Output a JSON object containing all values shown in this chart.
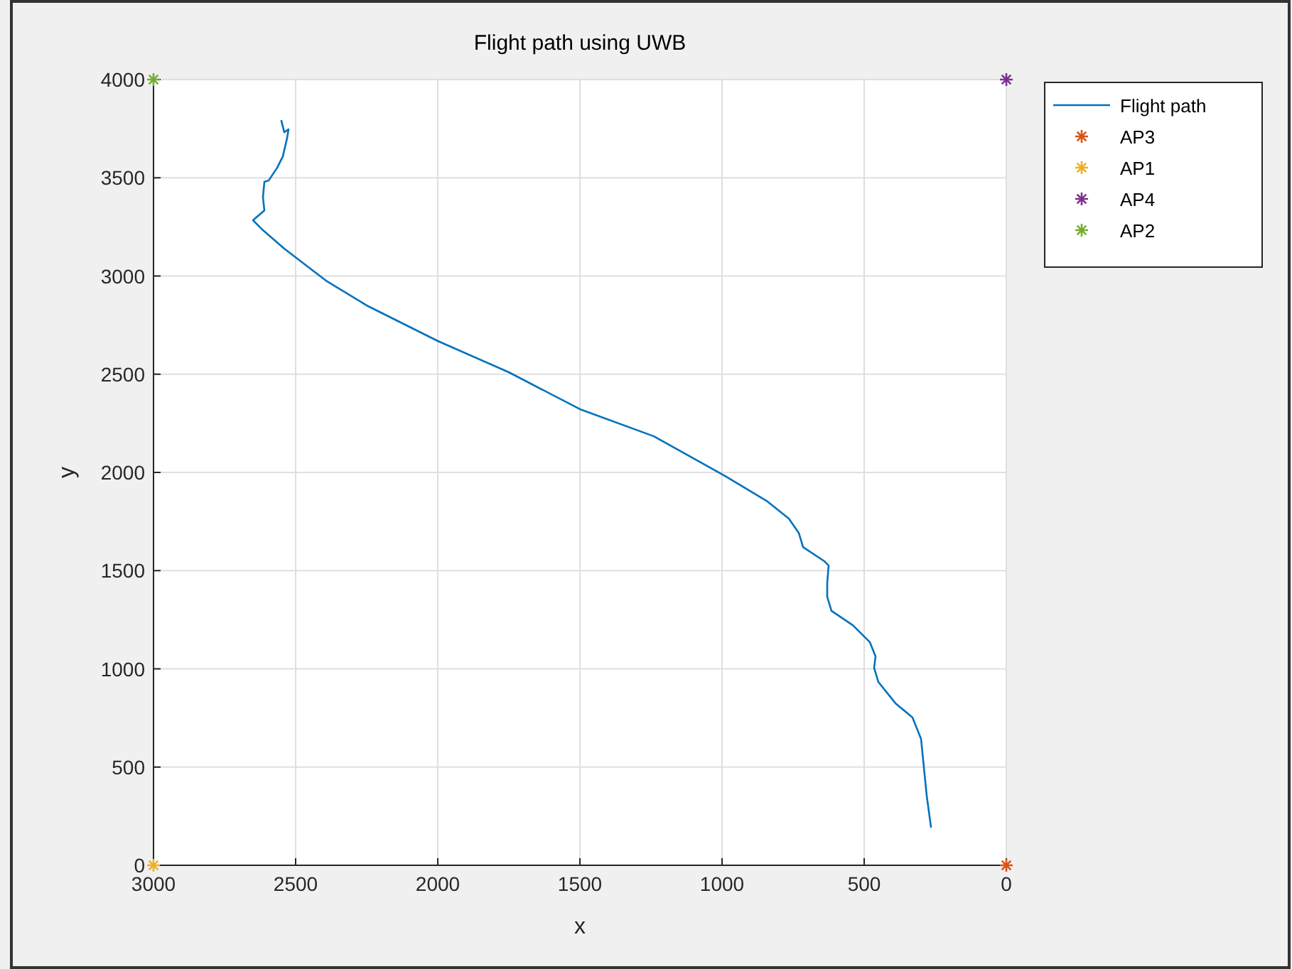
{
  "chart_data": {
    "type": "line",
    "title": "Flight path using UWB",
    "xlabel": "x",
    "ylabel": "y",
    "xlim": [
      3000,
      0
    ],
    "xticks": [
      3000,
      2500,
      2000,
      1500,
      1000,
      500,
      0
    ],
    "ylim": [
      0,
      4000
    ],
    "yticks": [
      0,
      500,
      1000,
      1500,
      2000,
      2500,
      3000,
      3500,
      4000
    ],
    "grid": true,
    "legend": "top right",
    "series": [
      {
        "name": "Flight path",
        "color": "#0072bd",
        "marker": "none",
        "x": [
          265,
          280,
          300,
          330,
          390,
          450,
          465,
          460,
          480,
          540,
          615,
          630,
          630,
          625,
          640,
          715,
          730,
          765,
          840,
          990,
          1240,
          1500,
          1750,
          2000,
          2250,
          2390,
          2540,
          2615,
          2650,
          2610,
          2615,
          2610,
          2595,
          2565,
          2545,
          2530,
          2525,
          2540,
          2550
        ],
        "values": [
          195,
          354,
          644,
          752,
          825,
          933,
          1005,
          1063,
          1136,
          1222,
          1295,
          1367,
          1439,
          1526,
          1548,
          1620,
          1692,
          1765,
          1852,
          1982,
          2184,
          2322,
          2510,
          2669,
          2850,
          2973,
          3139,
          3233,
          3284,
          3334,
          3400,
          3479,
          3486,
          3551,
          3609,
          3703,
          3747,
          3732,
          3790
        ]
      },
      {
        "name": "AP3",
        "type": "scatter",
        "color": "#d95319",
        "marker": "cross",
        "x": [
          0
        ],
        "values": [
          0
        ]
      },
      {
        "name": "AP1",
        "type": "scatter",
        "color": "#edb120",
        "marker": "cross",
        "x": [
          3000
        ],
        "values": [
          0
        ]
      },
      {
        "name": "AP4",
        "type": "scatter",
        "color": "#7e2f8e",
        "marker": "cross",
        "x": [
          0
        ],
        "values": [
          4000
        ]
      },
      {
        "name": "AP2",
        "type": "scatter",
        "color": "#77ac30",
        "marker": "cross",
        "x": [
          3000
        ],
        "values": [
          4000
        ]
      }
    ]
  }
}
